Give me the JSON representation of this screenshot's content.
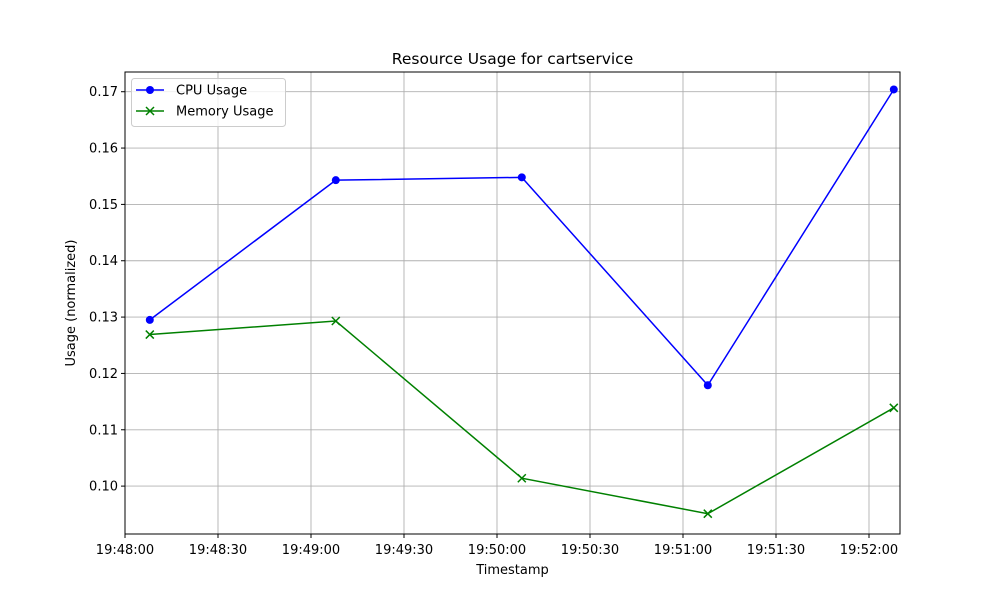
{
  "chart_data": {
    "type": "line",
    "title": "Resource Usage for cartservice",
    "xlabel": "Timestamp",
    "ylabel": "Usage (normalized)",
    "x": [
      "19:48:08",
      "19:49:08",
      "19:50:08",
      "19:51:08",
      "19:52:08"
    ],
    "xlim": [
      "19:48:00",
      "19:52:10"
    ],
    "x_ticks": [
      "19:48:00",
      "19:48:30",
      "19:49:00",
      "19:49:30",
      "19:50:00",
      "19:50:30",
      "19:51:00",
      "19:51:30",
      "19:52:00"
    ],
    "ylim": [
      0.0915,
      0.1735
    ],
    "y_ticks": [
      "0.10",
      "0.11",
      "0.12",
      "0.13",
      "0.14",
      "0.15",
      "0.16",
      "0.17"
    ],
    "grid": true,
    "legend_position": "top-left",
    "series": [
      {
        "name": "CPU Usage",
        "color": "#0000ff",
        "marker": "circle",
        "values": [
          0.1295,
          0.1543,
          0.1548,
          0.1179,
          0.1704
        ]
      },
      {
        "name": "Memory Usage",
        "color": "#008000",
        "marker": "x",
        "values": [
          0.1269,
          0.1293,
          0.1014,
          0.0951,
          0.1139
        ]
      }
    ]
  }
}
